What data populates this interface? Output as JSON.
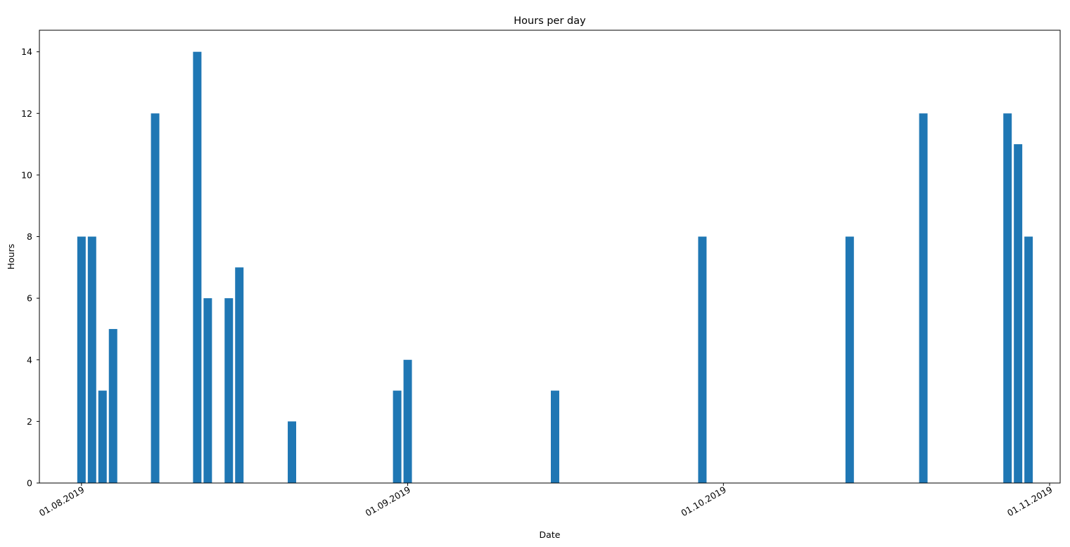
{
  "chart_data": {
    "type": "bar",
    "title": "Hours per day",
    "xlabel": "Date",
    "ylabel": "Hours",
    "bar_color": "#1f77b4",
    "ylim": [
      0,
      14.7
    ],
    "yticks": [
      0,
      2,
      4,
      6,
      8,
      10,
      12,
      14
    ],
    "xlim": [
      "2019-07-28",
      "2019-11-02"
    ],
    "xticks": [
      {
        "date": "2019-08-01",
        "label": "01.08.2019"
      },
      {
        "date": "2019-09-01",
        "label": "01.09.2019"
      },
      {
        "date": "2019-10-01",
        "label": "01.10.2019"
      },
      {
        "date": "2019-11-01",
        "label": "01.11.2019"
      }
    ],
    "grid": false,
    "legend": null,
    "series": [
      {
        "points": [
          {
            "date": "2019-08-01",
            "hours": 8
          },
          {
            "date": "2019-08-02",
            "hours": 8
          },
          {
            "date": "2019-08-03",
            "hours": 3
          },
          {
            "date": "2019-08-04",
            "hours": 5
          },
          {
            "date": "2019-08-08",
            "hours": 12
          },
          {
            "date": "2019-08-12",
            "hours": 14
          },
          {
            "date": "2019-08-13",
            "hours": 6
          },
          {
            "date": "2019-08-15",
            "hours": 6
          },
          {
            "date": "2019-08-16",
            "hours": 7
          },
          {
            "date": "2019-08-21",
            "hours": 2
          },
          {
            "date": "2019-08-31",
            "hours": 3
          },
          {
            "date": "2019-09-01",
            "hours": 4
          },
          {
            "date": "2019-09-15",
            "hours": 3
          },
          {
            "date": "2019-09-29",
            "hours": 8
          },
          {
            "date": "2019-10-13",
            "hours": 8
          },
          {
            "date": "2019-10-20",
            "hours": 12
          },
          {
            "date": "2019-10-28",
            "hours": 12
          },
          {
            "date": "2019-10-29",
            "hours": 11
          },
          {
            "date": "2019-10-30",
            "hours": 8
          }
        ]
      }
    ]
  }
}
